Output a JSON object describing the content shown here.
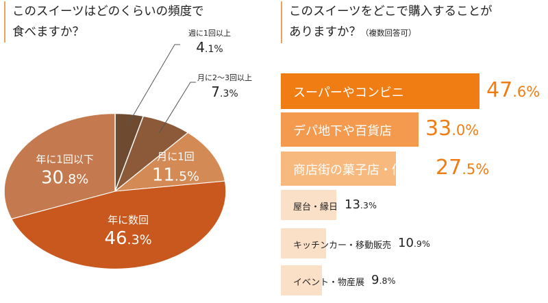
{
  "left_panel": {
    "title_line1": "このスイーツはどのくらいの頻度で",
    "title_line2": "食べますか？"
  },
  "right_panel": {
    "title_line1": "このスイーツをどこで購入することが",
    "title_line2": "ありますか？",
    "title_note": "（複数回答可）"
  },
  "chart_data": [
    {
      "type": "pie",
      "title": "このスイーツはどのくらいの頻度で食べますか？",
      "unit": "%",
      "slices": [
        {
          "label": "週に1回以上",
          "value": 4.1,
          "color": "#6e4a30"
        },
        {
          "label": "月に2〜3回以上",
          "value": 7.3,
          "color": "#8c5a38"
        },
        {
          "label": "月に1回",
          "value": 11.5,
          "color": "#d48a55"
        },
        {
          "label": "年に数回",
          "value": 46.3,
          "color": "#c8581e"
        },
        {
          "label": "年に1回以下",
          "value": 30.8,
          "color": "#c47a4e"
        }
      ]
    },
    {
      "type": "bar",
      "orientation": "horizontal",
      "title": "このスイーツをどこで購入することがありますか？（複数回答可）",
      "unit": "%",
      "categories": [
        "スーパーやコンビニ",
        "デパ地下や百貨店",
        "商店街の菓子店・個人店",
        "屋台・縁日",
        "キッチンカー・移動販売",
        "イベント・物産展"
      ],
      "values": [
        47.6,
        33.0,
        27.5,
        13.3,
        10.9,
        9.8
      ],
      "colors": [
        "#f07d14",
        "#f49a4e",
        "#f8b97e",
        "#fbe0c8",
        "#fbe0c8",
        "#fbe0c8"
      ]
    }
  ]
}
